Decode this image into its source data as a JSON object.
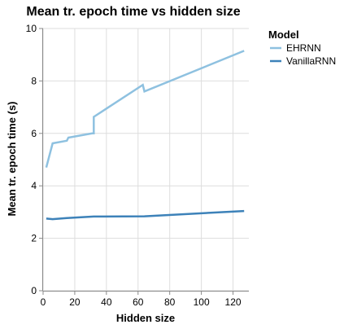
{
  "chart_data": {
    "type": "line",
    "title": "Mean tr. epoch time vs hidden size",
    "xlabel": "Hidden size",
    "ylabel": "Mean tr. epoch time (s)",
    "xlim": [
      0,
      130
    ],
    "ylim": [
      0,
      10
    ],
    "x_ticks": [
      0,
      20,
      40,
      60,
      80,
      100,
      120
    ],
    "y_ticks": [
      0,
      2,
      4,
      6,
      8,
      10
    ],
    "grid": true,
    "legend": {
      "title": "Model",
      "placement": "right"
    },
    "series": [
      {
        "name": "EHRNN",
        "color": "#8ec1e0",
        "points": [
          [
            2,
            4.7
          ],
          [
            6,
            5.62
          ],
          [
            15,
            5.72
          ],
          [
            16,
            5.84
          ],
          [
            31,
            6.0
          ],
          [
            32,
            6.0
          ],
          [
            32,
            6.63
          ],
          [
            63,
            7.85
          ],
          [
            64,
            7.6
          ],
          [
            127,
            9.15
          ]
        ]
      },
      {
        "name": "VanillaRNN",
        "color": "#3d82b9",
        "points": [
          [
            2,
            2.75
          ],
          [
            6,
            2.73
          ],
          [
            15,
            2.77
          ],
          [
            32,
            2.83
          ],
          [
            64,
            2.84
          ],
          [
            127,
            3.04
          ]
        ]
      }
    ]
  }
}
